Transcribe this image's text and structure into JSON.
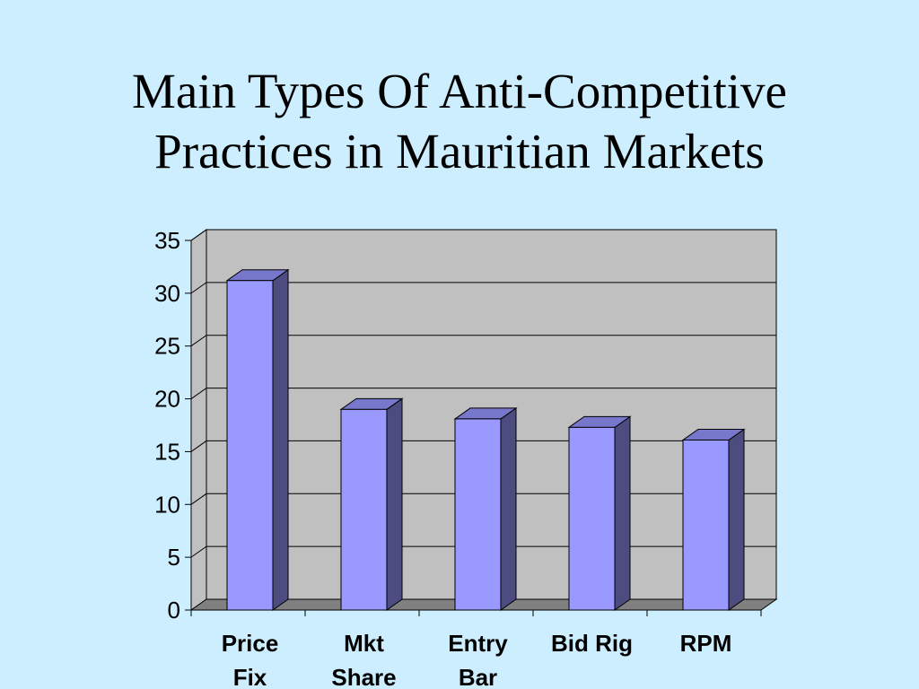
{
  "title": {
    "line1": "Main Types Of Anti-Competitive",
    "line2": "Practices in Mauritian Markets"
  },
  "chart_data": {
    "type": "bar",
    "style": "3d-column",
    "categories": [
      [
        "Price",
        "Fix"
      ],
      [
        "Mkt",
        "Share"
      ],
      [
        "Entry",
        "Bar"
      ],
      [
        "Bid Rig"
      ],
      [
        "RPM"
      ]
    ],
    "values": [
      31.2,
      19.0,
      18.1,
      17.3,
      16.1
    ],
    "yticks": [
      "0",
      "5",
      "10",
      "15",
      "20",
      "25",
      "30",
      "35"
    ],
    "ylim": [
      0,
      35
    ],
    "grid": true,
    "legend": "none",
    "colors": {
      "background": "#cceeff",
      "plot_wall": "#c0c0c0",
      "plot_floor": "#808080",
      "bar_front": "#9999ff",
      "bar_side": "#4c4c80",
      "bar_top": "#7777cc",
      "gridline": "#000000"
    }
  }
}
